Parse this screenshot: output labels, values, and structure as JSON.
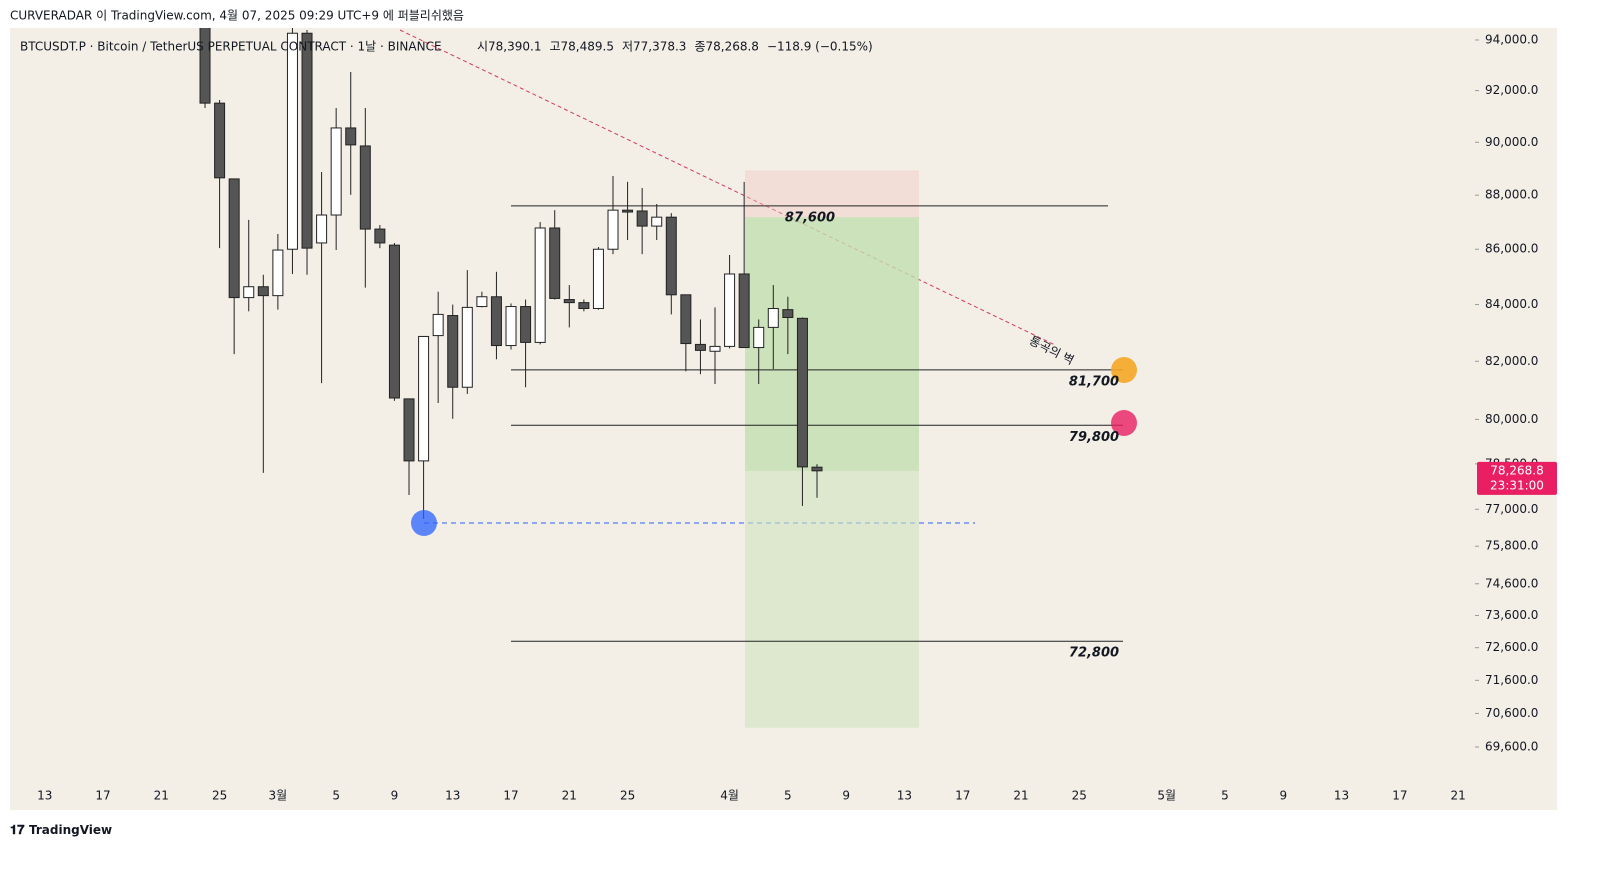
{
  "header": {
    "published": "CURVERADAR 이 TradingView.com, 4월 07, 2025 09:29 UTC+9 에 퍼블리쉬했음",
    "brand": "TradingView"
  },
  "chart_data": {
    "type": "candlestick",
    "symbol": "BTCUSDT.P · Bitcoin / TetherUS PERPETUAL CONTRACT · 1날 · BINANCE",
    "ohlc_text": [
      "시78,390.1",
      "고78,489.5",
      "저77,378.3",
      "종78,268.8",
      "−118.9 (−0.15%)"
    ],
    "log_scale": true,
    "ylim": [
      68630,
      94480
    ],
    "yticks": [
      {
        "value": 94000,
        "label": "94,000.0"
      },
      {
        "value": 92000,
        "label": "92,000.0"
      },
      {
        "value": 90000,
        "label": "90,000.0"
      },
      {
        "value": 88000,
        "label": "88,000.0"
      },
      {
        "value": 86000,
        "label": "86,000.0"
      },
      {
        "value": 84000,
        "label": "84,000.0"
      },
      {
        "value": 82000,
        "label": "82,000.0"
      },
      {
        "value": 80000,
        "label": "80,000.0"
      },
      {
        "value": 78500,
        "label": "78,500.0"
      },
      {
        "value": 77000,
        "label": "77,000.0"
      },
      {
        "value": 75800,
        "label": "75,800.0"
      },
      {
        "value": 74600,
        "label": "74,600.0"
      },
      {
        "value": 73600,
        "label": "73,600.0"
      },
      {
        "value": 72600,
        "label": "72,600.0"
      },
      {
        "value": 71600,
        "label": "71,600.0"
      },
      {
        "value": 70600,
        "label": "70,600.0"
      },
      {
        "value": 69600,
        "label": "69,600.0"
      }
    ],
    "xlim": [
      "02-11",
      "05-22"
    ],
    "xticks": [
      {
        "value": "02-13",
        "label": "13"
      },
      {
        "value": "02-17",
        "label": "17"
      },
      {
        "value": "02-21",
        "label": "21"
      },
      {
        "value": "02-25",
        "label": "25"
      },
      {
        "value": "03-01",
        "label": "3월"
      },
      {
        "value": "03-05",
        "label": "5"
      },
      {
        "value": "03-09",
        "label": "9"
      },
      {
        "value": "03-13",
        "label": "13"
      },
      {
        "value": "03-17",
        "label": "17"
      },
      {
        "value": "03-21",
        "label": "21"
      },
      {
        "value": "03-25",
        "label": "25"
      },
      {
        "value": "04-01",
        "label": "4월"
      },
      {
        "value": "04-05",
        "label": "5"
      },
      {
        "value": "04-09",
        "label": "9"
      },
      {
        "value": "04-13",
        "label": "13"
      },
      {
        "value": "04-17",
        "label": "17"
      },
      {
        "value": "04-21",
        "label": "21"
      },
      {
        "value": "04-25",
        "label": "25"
      },
      {
        "value": "05-01",
        "label": "5월"
      },
      {
        "value": "05-05",
        "label": "5"
      },
      {
        "value": "05-09",
        "label": "9"
      },
      {
        "value": "05-13",
        "label": "13"
      },
      {
        "value": "05-17",
        "label": "17"
      },
      {
        "value": "05-21",
        "label": "21"
      }
    ],
    "up_color": "#ffffff",
    "down_color": "#555555",
    "wick_color": "#222222",
    "candles": [
      {
        "x": "02-24",
        "open": 94500,
        "high": 95000,
        "low": 91320,
        "close": 91510
      },
      {
        "x": "02-25",
        "open": 91510,
        "high": 91630,
        "low": 86040,
        "close": 88650
      },
      {
        "x": "02-26",
        "open": 88610,
        "high": 88610,
        "low": 82250,
        "close": 84250
      },
      {
        "x": "02-27",
        "open": 84250,
        "high": 87080,
        "low": 83760,
        "close": 84640
      },
      {
        "x": "02-28",
        "open": 84640,
        "high": 85070,
        "low": 78200,
        "close": 84320
      },
      {
        "x": "03-01",
        "open": 84320,
        "high": 86560,
        "low": 83820,
        "close": 85970
      },
      {
        "x": "03-02",
        "open": 86000,
        "high": 95000,
        "low": 85100,
        "close": 94270
      },
      {
        "x": "03-03",
        "open": 94270,
        "high": 94400,
        "low": 85070,
        "close": 86040
      },
      {
        "x": "03-04",
        "open": 86230,
        "high": 88870,
        "low": 81240,
        "close": 87260
      },
      {
        "x": "03-05",
        "open": 87260,
        "high": 91320,
        "low": 85970,
        "close": 90550
      },
      {
        "x": "03-06",
        "open": 90550,
        "high": 92730,
        "low": 88010,
        "close": 89900
      },
      {
        "x": "03-07",
        "open": 89860,
        "high": 91320,
        "low": 84610,
        "close": 86740
      },
      {
        "x": "03-08",
        "open": 86740,
        "high": 86890,
        "low": 86040,
        "close": 86230
      },
      {
        "x": "03-09",
        "open": 86150,
        "high": 86230,
        "low": 80630,
        "close": 80730
      },
      {
        "x": "03-10",
        "open": 80700,
        "high": 80700,
        "low": 77470,
        "close": 78600
      },
      {
        "x": "03-11",
        "open": 78600,
        "high": 82870,
        "low": 76690,
        "close": 82870
      },
      {
        "x": "03-12",
        "open": 82900,
        "high": 84460,
        "low": 80560,
        "close": 83650
      },
      {
        "x": "03-13",
        "open": 83610,
        "high": 84000,
        "low": 80020,
        "close": 81100
      },
      {
        "x": "03-14",
        "open": 81100,
        "high": 85240,
        "low": 80870,
        "close": 83900
      },
      {
        "x": "03-15",
        "open": 83930,
        "high": 84460,
        "low": 83900,
        "close": 84280
      },
      {
        "x": "03-16",
        "open": 84280,
        "high": 85180,
        "low": 82070,
        "close": 82550
      },
      {
        "x": "03-17",
        "open": 82550,
        "high": 84040,
        "low": 82410,
        "close": 83930
      },
      {
        "x": "03-18",
        "open": 83930,
        "high": 84180,
        "low": 81100,
        "close": 82660
      },
      {
        "x": "03-19",
        "open": 82660,
        "high": 87000,
        "low": 82590,
        "close": 86780
      },
      {
        "x": "03-20",
        "open": 86780,
        "high": 87440,
        "low": 84180,
        "close": 84220
      },
      {
        "x": "03-21",
        "open": 84180,
        "high": 84700,
        "low": 83190,
        "close": 84070
      },
      {
        "x": "03-22",
        "open": 84070,
        "high": 84180,
        "low": 83760,
        "close": 83860
      },
      {
        "x": "03-23",
        "open": 83860,
        "high": 86080,
        "low": 83820,
        "close": 86000
      },
      {
        "x": "03-24",
        "open": 86000,
        "high": 88720,
        "low": 85820,
        "close": 87440
      },
      {
        "x": "03-25",
        "open": 87440,
        "high": 88500,
        "low": 86340,
        "close": 87370
      },
      {
        "x": "03-26",
        "open": 87410,
        "high": 88270,
        "low": 85820,
        "close": 86850
      },
      {
        "x": "03-27",
        "open": 86850,
        "high": 87670,
        "low": 86340,
        "close": 87180
      },
      {
        "x": "03-28",
        "open": 87180,
        "high": 87330,
        "low": 83650,
        "close": 84350
      },
      {
        "x": "03-29",
        "open": 84350,
        "high": 84350,
        "low": 81650,
        "close": 82620
      },
      {
        "x": "03-30",
        "open": 82590,
        "high": 83470,
        "low": 81550,
        "close": 82380
      },
      {
        "x": "03-31",
        "open": 82350,
        "high": 83900,
        "low": 81210,
        "close": 82520
      },
      {
        "x": "04-01",
        "open": 82520,
        "high": 85790,
        "low": 82450,
        "close": 85100
      },
      {
        "x": "04-02",
        "open": 85100,
        "high": 88500,
        "low": 82480,
        "close": 82480
      },
      {
        "x": "04-03",
        "open": 82480,
        "high": 83470,
        "low": 81210,
        "close": 83190
      },
      {
        "x": "04-04",
        "open": 83190,
        "high": 84700,
        "low": 81730,
        "close": 83860
      },
      {
        "x": "04-05",
        "open": 83820,
        "high": 84280,
        "low": 82250,
        "close": 83540
      },
      {
        "x": "04-06",
        "open": 83510,
        "high": 83540,
        "low": 77110,
        "close": 78400
      },
      {
        "x": "04-07",
        "open": 78390.1,
        "high": 78489.5,
        "low": 77378.3,
        "close": 78268.8
      }
    ],
    "levels": [
      {
        "value": 87600,
        "label": "87,600"
      },
      {
        "value": 81700,
        "label": "81,700"
      },
      {
        "value": 79800,
        "label": "79,800"
      },
      {
        "value": 72800,
        "label": "72,800"
      }
    ],
    "position": {
      "stop": 88930,
      "entry": 87180,
      "target": 70170
    },
    "annotation": "통곡의 벽",
    "last_price": {
      "value": 78268.8,
      "label": "78,268.8",
      "countdown": "23:31:00",
      "color": "#e91e63"
    }
  }
}
